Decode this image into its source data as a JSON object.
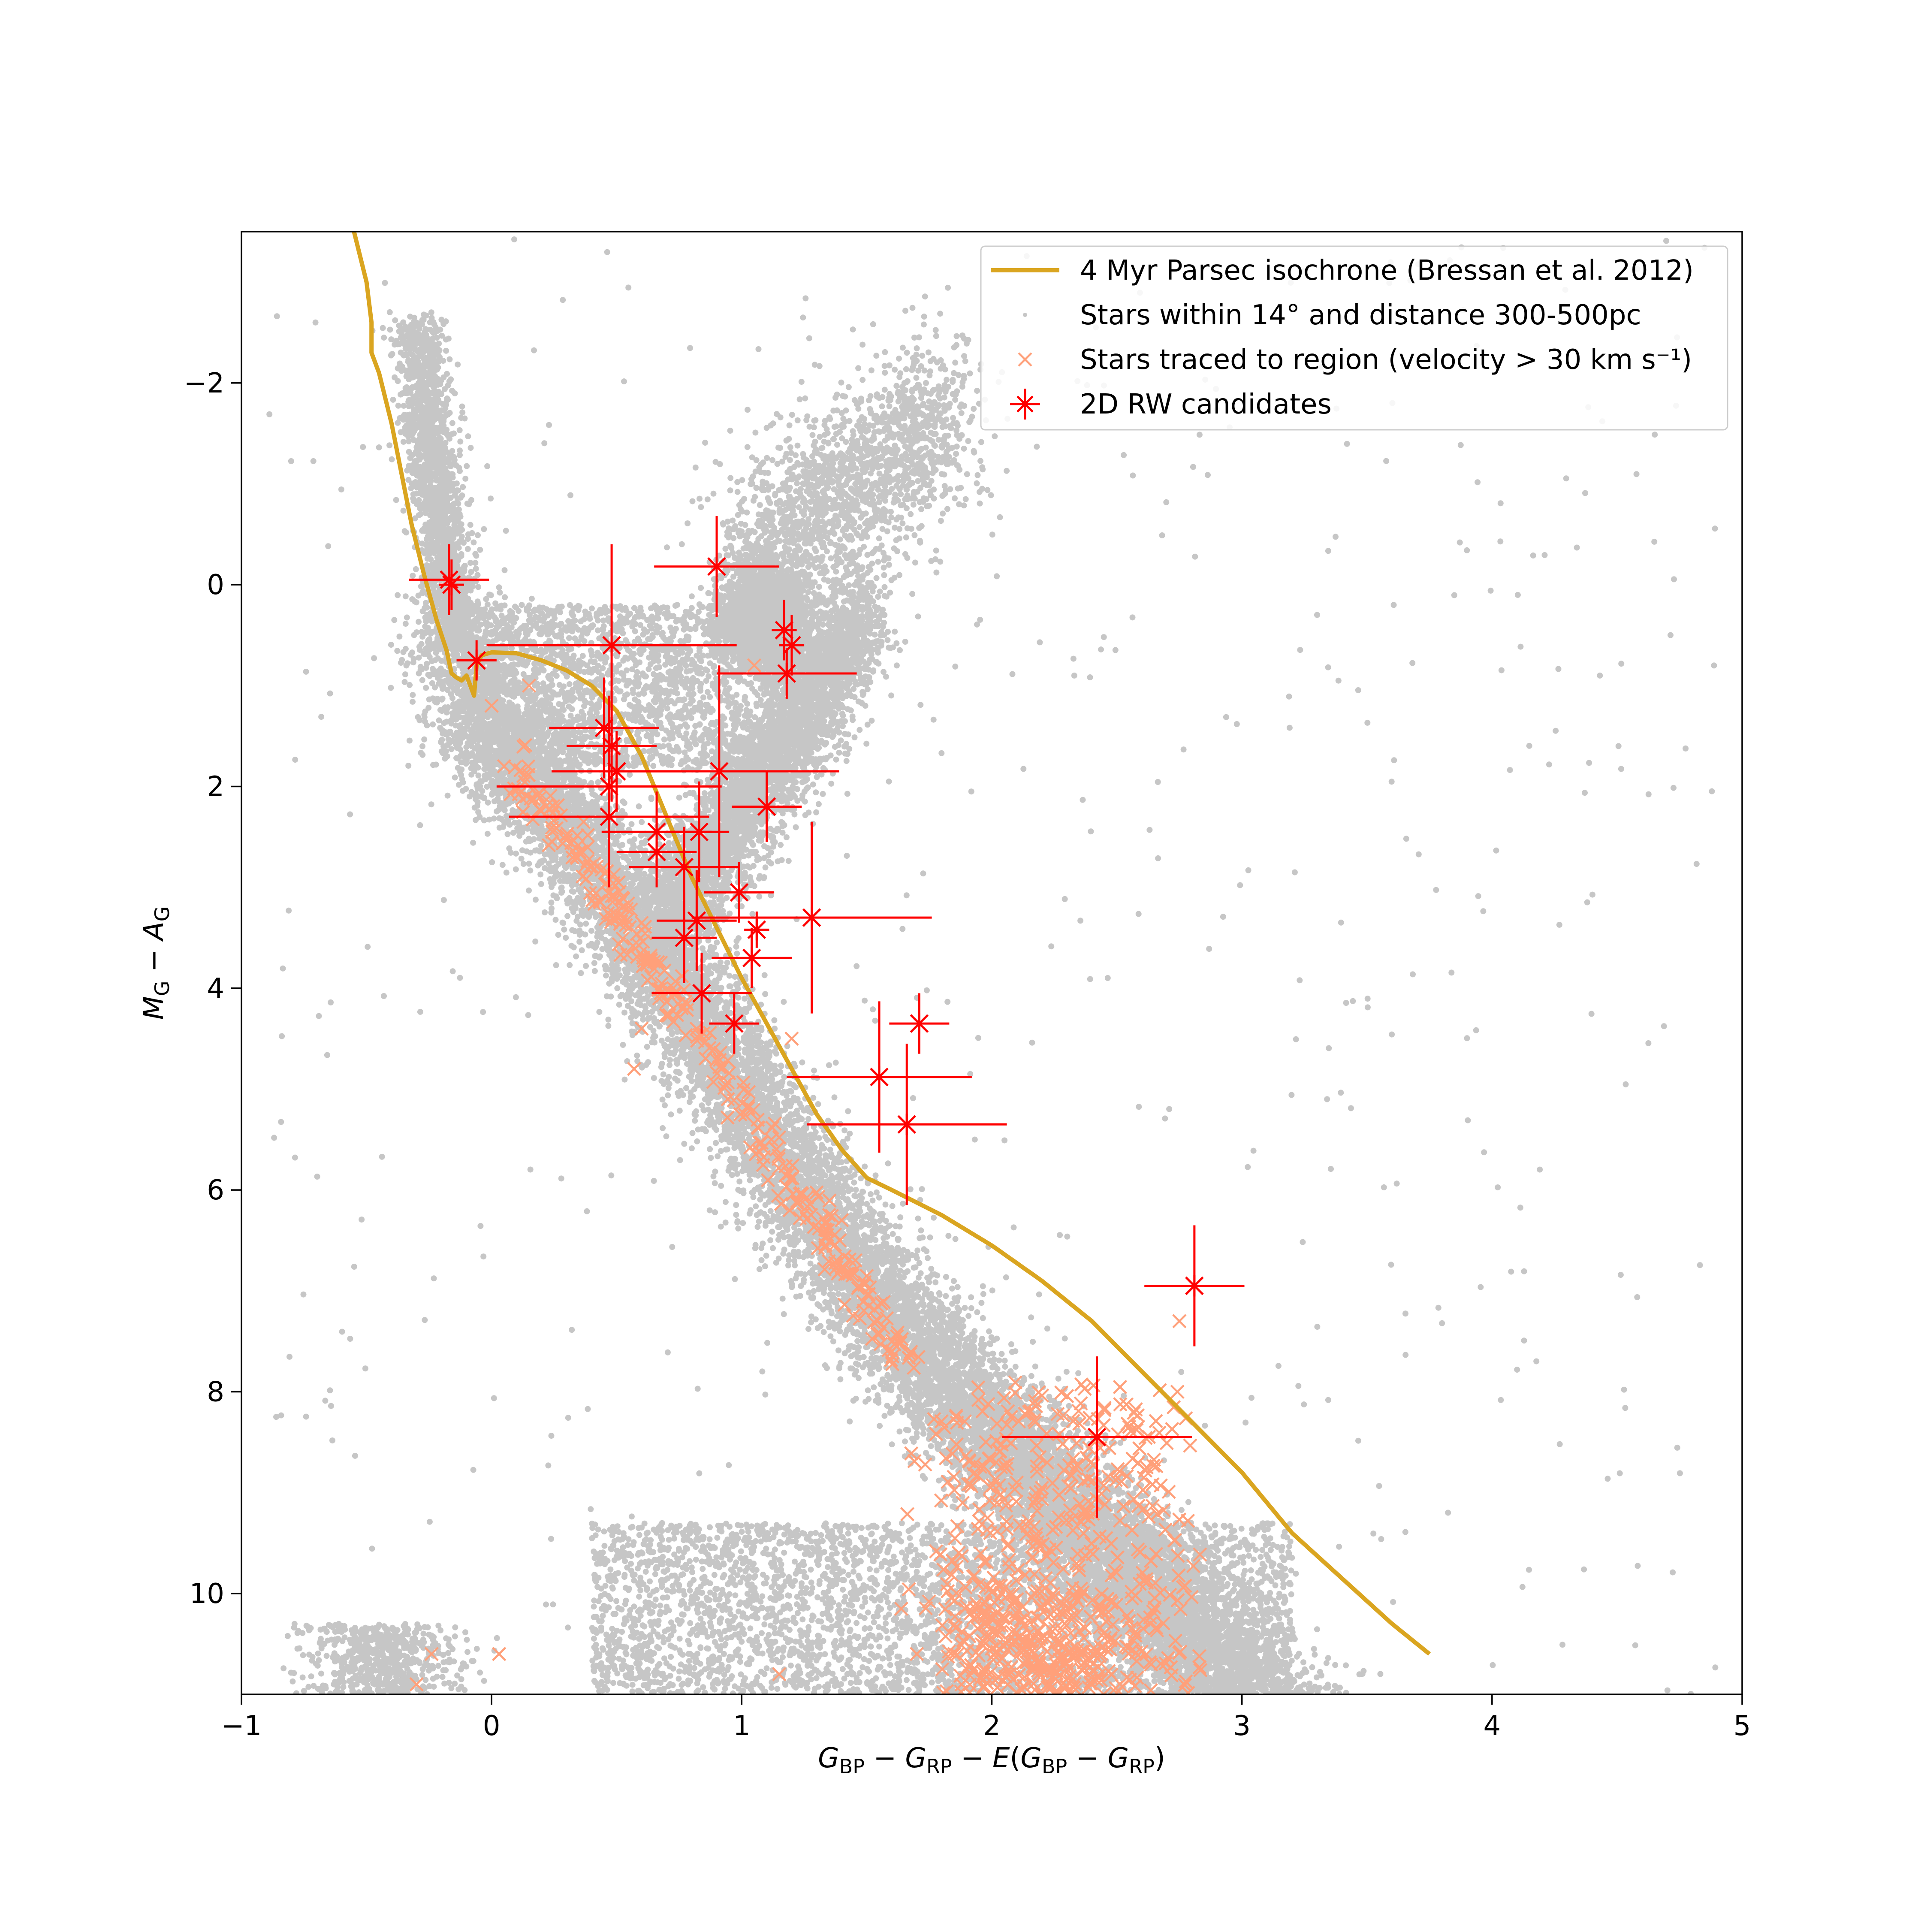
{
  "chart_data": {
    "type": "scatter",
    "title": "",
    "xlabel": "G_BP − G_RP − E(G_BP − G_RP)",
    "ylabel": "M_G − A_G",
    "xlim": [
      -1,
      5
    ],
    "ylim": [
      11.0,
      -3.5
    ],
    "y_inverted": true,
    "x_ticks": [
      -1,
      0,
      1,
      2,
      3,
      4,
      5
    ],
    "x_tick_labels": [
      "−1",
      "0",
      "1",
      "2",
      "3",
      "4",
      "5"
    ],
    "y_ticks": [
      -2,
      0,
      2,
      4,
      6,
      8,
      10
    ],
    "y_tick_labels": [
      "−2",
      "0",
      "2",
      "4",
      "6",
      "8",
      "10"
    ],
    "grid": false,
    "legend_position": "top-right",
    "legend": [
      {
        "label": "4 Myr Parsec isochrone (Bressan et al. 2012)",
        "marker": "line",
        "color": "#DAA520"
      },
      {
        "label": "Stars within 14° and distance 300-500pc",
        "marker": "dot",
        "color": "#808080"
      },
      {
        "label": "Stars traced to region (velocity > 30 km s⁻¹)",
        "marker": "x",
        "color": "#FFA07A"
      },
      {
        "label": "2D RW candidates",
        "marker": "errorbar-star",
        "color": "#FF0000"
      }
    ],
    "series": [
      {
        "name": "4 Myr Parsec isochrone (Bressan et al. 2012)",
        "kind": "line",
        "color": "#DAA520",
        "points": [
          [
            -0.55,
            -3.5
          ],
          [
            -0.5,
            -3.0
          ],
          [
            -0.48,
            -2.6
          ],
          [
            -0.48,
            -2.3
          ],
          [
            -0.45,
            -2.1
          ],
          [
            -0.43,
            -1.9
          ],
          [
            -0.4,
            -1.6
          ],
          [
            -0.36,
            -1.1
          ],
          [
            -0.32,
            -0.6
          ],
          [
            -0.27,
            -0.1
          ],
          [
            -0.22,
            0.35
          ],
          [
            -0.18,
            0.65
          ],
          [
            -0.16,
            0.88
          ],
          [
            -0.14,
            0.92
          ],
          [
            -0.12,
            0.95
          ],
          [
            -0.1,
            0.9
          ],
          [
            -0.07,
            1.1
          ],
          [
            -0.06,
            0.8
          ],
          [
            -0.04,
            0.7
          ],
          [
            0.0,
            0.67
          ],
          [
            0.1,
            0.68
          ],
          [
            0.2,
            0.75
          ],
          [
            0.3,
            0.85
          ],
          [
            0.4,
            1.0
          ],
          [
            0.5,
            1.25
          ],
          [
            0.6,
            1.7
          ],
          [
            0.7,
            2.3
          ],
          [
            0.8,
            2.9
          ],
          [
            0.9,
            3.4
          ],
          [
            1.0,
            3.9
          ],
          [
            1.1,
            4.35
          ],
          [
            1.2,
            4.8
          ],
          [
            1.3,
            5.25
          ],
          [
            1.4,
            5.6
          ],
          [
            1.5,
            5.88
          ],
          [
            1.6,
            6.0
          ],
          [
            1.8,
            6.25
          ],
          [
            2.0,
            6.55
          ],
          [
            2.2,
            6.9
          ],
          [
            2.4,
            7.3
          ],
          [
            2.6,
            7.8
          ],
          [
            2.8,
            8.3
          ],
          [
            3.0,
            8.8
          ],
          [
            3.2,
            9.4
          ],
          [
            3.4,
            9.85
          ],
          [
            3.6,
            10.3
          ],
          [
            3.75,
            10.6
          ]
        ]
      },
      {
        "name": "Stars within 14° and distance 300-500pc",
        "kind": "scatter",
        "color": "#808080"
      },
      {
        "name": "Stars traced to region (velocity > 30 km s⁻¹)",
        "kind": "scatter",
        "color": "#FFA07A",
        "sample_points": [
          [
            -0.24,
            10.6
          ],
          [
            0.03,
            10.6
          ],
          [
            -0.3,
            10.9
          ],
          [
            1.15,
            10.8
          ],
          [
            0.57,
            4.8
          ],
          [
            0.6,
            4.4
          ],
          [
            1.4,
            6.3
          ],
          [
            2.75,
            7.3
          ],
          [
            0.15,
            1.0
          ],
          [
            1.05,
            0.8
          ],
          [
            0.0,
            1.2
          ],
          [
            0.05,
            1.8
          ],
          [
            1.2,
            4.5
          ],
          [
            1.7,
            10.6
          ],
          [
            1.85,
            10.6
          ]
        ]
      },
      {
        "name": "2D RW candidates",
        "kind": "errorbar",
        "color": "#FF0000",
        "points": [
          {
            "x": -0.17,
            "y": -0.05,
            "xerr": 0.16,
            "yerr": 0.35
          },
          {
            "x": -0.16,
            "y": 0.0,
            "xerr": 0.05,
            "yerr": 0.25
          },
          {
            "x": -0.06,
            "y": 0.75,
            "xerr": 0.08,
            "yerr": 0.2
          },
          {
            "x": 0.48,
            "y": 0.6,
            "xerr": 0.5,
            "yerr": 1.0
          },
          {
            "x": 0.9,
            "y": -0.18,
            "xerr": 0.25,
            "yerr": 0.5
          },
          {
            "x": 1.17,
            "y": 0.45,
            "xerr": 0.05,
            "yerr": 0.3
          },
          {
            "x": 1.2,
            "y": 0.6,
            "xerr": 0.05,
            "yerr": 0.3
          },
          {
            "x": 1.18,
            "y": 0.88,
            "xerr": 0.28,
            "yerr": 0.25
          },
          {
            "x": 0.45,
            "y": 1.42,
            "xerr": 0.22,
            "yerr": 0.5
          },
          {
            "x": 0.48,
            "y": 1.6,
            "xerr": 0.18,
            "yerr": 0.55
          },
          {
            "x": 0.47,
            "y": 2.0,
            "xerr": 0.45,
            "yerr": 0.9
          },
          {
            "x": 0.5,
            "y": 1.85,
            "xerr": 0.26,
            "yerr": 0.4
          },
          {
            "x": 0.47,
            "y": 2.3,
            "xerr": 0.4,
            "yerr": 0.7
          },
          {
            "x": 0.91,
            "y": 1.85,
            "xerr": 0.48,
            "yerr": 1.05
          },
          {
            "x": 1.1,
            "y": 2.2,
            "xerr": 0.14,
            "yerr": 0.35
          },
          {
            "x": 0.66,
            "y": 2.45,
            "xerr": 0.22,
            "yerr": 0.4
          },
          {
            "x": 0.66,
            "y": 2.65,
            "xerr": 0.16,
            "yerr": 0.35
          },
          {
            "x": 0.83,
            "y": 2.45,
            "xerr": 0.12,
            "yerr": 0.5
          },
          {
            "x": 0.99,
            "y": 3.05,
            "xerr": 0.14,
            "yerr": 0.3
          },
          {
            "x": 0.77,
            "y": 2.8,
            "xerr": 0.22,
            "yerr": 0.4
          },
          {
            "x": 0.82,
            "y": 3.33,
            "xerr": 0.16,
            "yerr": 0.5
          },
          {
            "x": 0.77,
            "y": 3.5,
            "xerr": 0.13,
            "yerr": 0.45
          },
          {
            "x": 1.06,
            "y": 3.42,
            "xerr": 0.05,
            "yerr": 0.18
          },
          {
            "x": 1.28,
            "y": 3.3,
            "xerr": 0.48,
            "yerr": 0.95
          },
          {
            "x": 1.04,
            "y": 3.7,
            "xerr": 0.16,
            "yerr": 0.3
          },
          {
            "x": 0.84,
            "y": 4.05,
            "xerr": 0.2,
            "yerr": 0.4
          },
          {
            "x": 0.97,
            "y": 4.35,
            "xerr": 0.1,
            "yerr": 0.3
          },
          {
            "x": 1.71,
            "y": 4.35,
            "xerr": 0.12,
            "yerr": 0.3
          },
          {
            "x": 1.55,
            "y": 4.88,
            "xerr": 0.37,
            "yerr": 0.75
          },
          {
            "x": 1.66,
            "y": 5.35,
            "xerr": 0.4,
            "yerr": 0.8
          },
          {
            "x": 2.81,
            "y": 6.95,
            "xerr": 0.2,
            "yerr": 0.6
          },
          {
            "x": 2.42,
            "y": 8.45,
            "xerr": 0.38,
            "yerr": 0.8
          }
        ]
      }
    ]
  }
}
